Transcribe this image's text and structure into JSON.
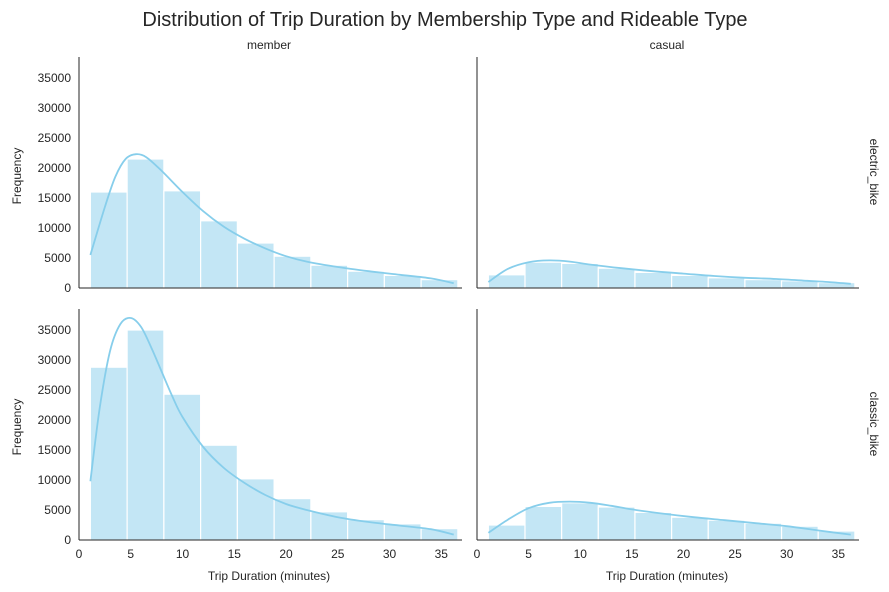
{
  "chart_data": {
    "type": "histogram",
    "title": "Distribution of Trip Duration by Membership Type and Rideable Type",
    "x_label": "Trip Duration (minutes)",
    "y_label": "Frequency",
    "xlim": [
      0,
      37
    ],
    "ylim": [
      0,
      38500
    ],
    "x_ticks": [
      0,
      5,
      10,
      15,
      20,
      25,
      30,
      35
    ],
    "y_ticks": [
      0,
      5000,
      10000,
      15000,
      20000,
      25000,
      30000,
      35000
    ],
    "bin_edges": [
      1.1,
      4.65,
      8.2,
      11.75,
      15.3,
      18.85,
      22.4,
      25.95,
      29.5,
      33.05,
      36.6
    ],
    "columns": [
      "member",
      "casual"
    ],
    "rows": [
      "electric_bike",
      "classic_bike"
    ],
    "bar_color": "#87ceeb",
    "kde_color": "#87ceeb",
    "grid": false,
    "panels": [
      {
        "column": "member",
        "row": "electric_bike",
        "counts": [
          16000,
          21500,
          16200,
          11200,
          7500,
          5300,
          3800,
          2800,
          2100,
          1400
        ],
        "kde_x": [
          1.1,
          2.5,
          3.5,
          4.5,
          5.5,
          6.5,
          8,
          10,
          12,
          14,
          16,
          18,
          20,
          22,
          25,
          28,
          31,
          34,
          36.2
        ],
        "kde_y": [
          5500,
          13500,
          18500,
          21500,
          22300,
          21800,
          19500,
          16000,
          12800,
          10200,
          8200,
          6600,
          5300,
          4400,
          3500,
          2800,
          2200,
          1600,
          800
        ]
      },
      {
        "column": "casual",
        "row": "electric_bike",
        "counts": [
          2200,
          4300,
          4100,
          3300,
          2600,
          2100,
          1700,
          1400,
          1200,
          900
        ],
        "kde_x": [
          1.1,
          3,
          5,
          7,
          9,
          11,
          14,
          17,
          20,
          23,
          26,
          29,
          32,
          34,
          36.2
        ],
        "kde_y": [
          1000,
          3200,
          4300,
          4600,
          4400,
          3900,
          3300,
          2800,
          2400,
          2000,
          1700,
          1500,
          1200,
          1000,
          700
        ]
      },
      {
        "column": "member",
        "row": "classic_bike",
        "counts": [
          28800,
          35000,
          24300,
          15800,
          10200,
          6900,
          4700,
          3400,
          2700,
          1900
        ],
        "kde_x": [
          1.1,
          2,
          3,
          4,
          5,
          6,
          7,
          8,
          9,
          10,
          12,
          14,
          16,
          18,
          20,
          22,
          25,
          28,
          31,
          34,
          36.2
        ],
        "kde_y": [
          9800,
          22000,
          31500,
          36000,
          37000,
          35500,
          32000,
          28000,
          24000,
          20500,
          15500,
          12000,
          9500,
          7500,
          6000,
          5000,
          3800,
          3000,
          2400,
          1800,
          900
        ]
      },
      {
        "column": "casual",
        "row": "classic_bike",
        "counts": [
          2500,
          5600,
          6200,
          5500,
          4600,
          3800,
          3300,
          2800,
          2300,
          1500
        ],
        "kde_x": [
          1.1,
          3,
          5,
          7,
          9,
          11,
          13,
          15,
          18,
          21,
          24,
          27,
          30,
          33,
          36.2
        ],
        "kde_y": [
          1200,
          3400,
          5300,
          6200,
          6400,
          6200,
          5700,
          5100,
          4400,
          3800,
          3300,
          2800,
          2300,
          1600,
          900
        ]
      }
    ]
  }
}
